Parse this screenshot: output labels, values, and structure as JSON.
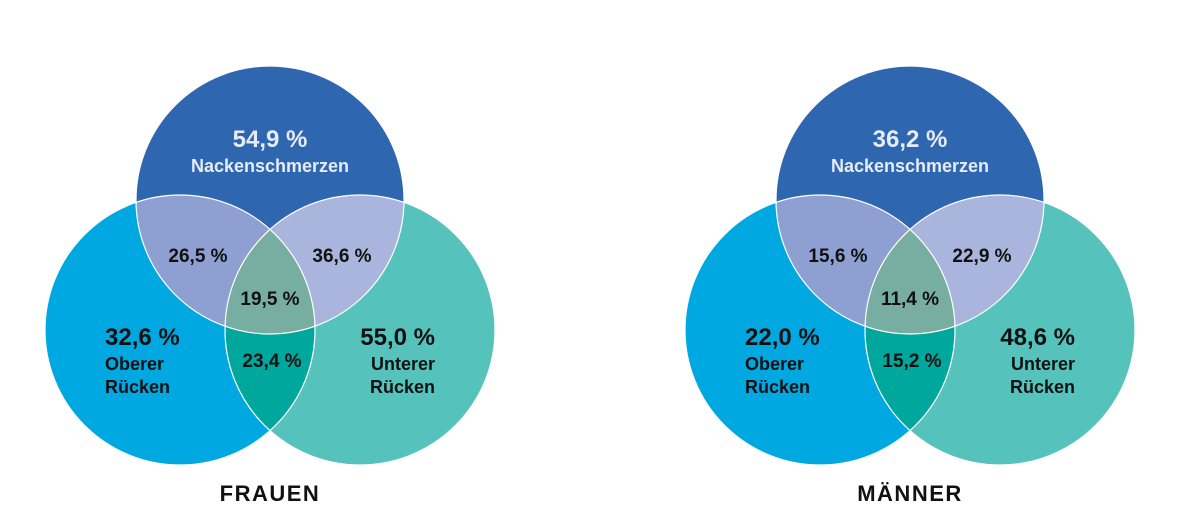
{
  "colors": {
    "neck": "#2E66B0",
    "upper": "#00A8E1",
    "lower": "#55C2BB",
    "neck_upper": "#8E9FD2",
    "neck_lower": "#A9B5DD",
    "upper_lower": "#00A79D",
    "center": "#77AEA1",
    "outline": "#ffffff",
    "text_light": "#E6ECF7",
    "text_dark": "#111111"
  },
  "diagrams": [
    {
      "caption": "FRAUEN",
      "neck_value": "54,9 %",
      "neck_label": "Nackenschmerzen",
      "upper_value": "32,6 %",
      "upper_label_1": "Oberer",
      "upper_label_2": "Rücken",
      "lower_value": "55,0 %",
      "lower_label_1": "Unterer",
      "lower_label_2": "Rücken",
      "neck_upper": "26,5 %",
      "neck_lower": "36,6 %",
      "center": "19,5 %",
      "upper_lower": "23,4 %"
    },
    {
      "caption": "MÄNNER",
      "neck_value": "36,2 %",
      "neck_label": "Nackenschmerzen",
      "upper_value": "22,0 %",
      "upper_label_1": "Oberer",
      "upper_label_2": "Rücken",
      "lower_value": "48,6 %",
      "lower_label_1": "Unterer",
      "lower_label_2": "Rücken",
      "neck_upper": "15,6 %",
      "neck_lower": "22,9 %",
      "center": "11,4 %",
      "upper_lower": "15,2 %"
    }
  ]
}
